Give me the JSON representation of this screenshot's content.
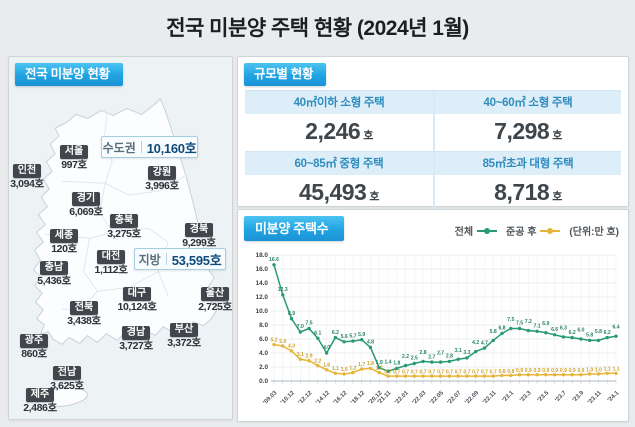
{
  "title": "전국 미분양 주택 현황 (2024년 1월)",
  "map_panel": {
    "header": "전국 미분양 현황",
    "capital_box": {
      "label": "수도권",
      "value": "10,160호"
    },
    "province_box": {
      "label": "지방",
      "value": "53,595호"
    },
    "regions": [
      {
        "name": "서울",
        "value": "997호"
      },
      {
        "name": "인천",
        "value": "3,094호"
      },
      {
        "name": "경기",
        "value": "6,069호"
      },
      {
        "name": "강원",
        "value": "3,996호"
      },
      {
        "name": "충북",
        "value": "3,275호"
      },
      {
        "name": "세종",
        "value": "120호"
      },
      {
        "name": "경북",
        "value": "9,299호"
      },
      {
        "name": "대전",
        "value": "1,112호"
      },
      {
        "name": "충남",
        "value": "5,436호"
      },
      {
        "name": "대구",
        "value": "10,124호"
      },
      {
        "name": "울산",
        "value": "2,725호"
      },
      {
        "name": "전북",
        "value": "3,438호"
      },
      {
        "name": "경남",
        "value": "3,727호"
      },
      {
        "name": "부산",
        "value": "3,372호"
      },
      {
        "name": "광주",
        "value": "860호"
      },
      {
        "name": "전남",
        "value": "3,625호"
      },
      {
        "name": "제주",
        "value": "2,486호"
      }
    ]
  },
  "size_panel": {
    "header": "규모별 현황",
    "cells": [
      {
        "label": "40㎡이하 소형 주택",
        "value": "2,246",
        "unit": "호"
      },
      {
        "label": "40~60㎡ 소형 주택",
        "value": "7,298",
        "unit": "호"
      },
      {
        "label": "60~85㎡ 중형 주택",
        "value": "45,493",
        "unit": "호"
      },
      {
        "label": "85㎡초과 대형 주택",
        "value": "8,718",
        "unit": "호"
      }
    ]
  },
  "chart_panel": {
    "header": "미분양 주택수",
    "unit_note": "(단위:만 호)"
  },
  "chart_data": {
    "type": "line",
    "title": "미분양 주택수",
    "unit": "만 호",
    "ylim": [
      0,
      18
    ],
    "ytick_step": 2,
    "grid": true,
    "legend_position": "top-right",
    "x_labels": [
      "'09.03",
      "'10.12",
      "'12.12",
      "'14.12",
      "'16.12",
      "'18.12",
      "'20.12",
      "'21.11",
      "'22.01",
      "'22.03",
      "'22.05",
      "'22.07",
      "'22.09",
      "'22.11",
      "'23.1",
      "'23.3",
      "'23.5",
      "'23.7",
      "'23.9",
      "'23.11",
      "'24.1"
    ],
    "x_label_indices": [
      0,
      2,
      4,
      6,
      8,
      10,
      12,
      13,
      15,
      17,
      19,
      21,
      23,
      25,
      27,
      29,
      31,
      33,
      35,
      37,
      39
    ],
    "series": [
      {
        "name": "전체",
        "color": "#279b6f",
        "label_color": "#27835d",
        "values": [
          16.6,
          12.3,
          8.9,
          7.0,
          7.5,
          6.1,
          4.0,
          6.2,
          5.6,
          5.7,
          5.9,
          4.8,
          1.9,
          1.4,
          1.8,
          2.2,
          2.5,
          2.8,
          2.7,
          2.7,
          2.8,
          3.1,
          3.3,
          4.2,
          4.7,
          5.8,
          6.8,
          7.5,
          7.5,
          7.2,
          7.1,
          6.9,
          6.6,
          6.3,
          6.2,
          6.0,
          5.8,
          5.8,
          6.2,
          6.4
        ]
      },
      {
        "name": "준공 후",
        "color": "#e6b438",
        "label_color": "#d2a02c",
        "values": [
          5.2,
          5.0,
          4.3,
          3.1,
          2.9,
          2.2,
          1.6,
          1.1,
          1.0,
          1.2,
          1.7,
          1.8,
          1.2,
          0.7,
          0.7,
          0.7,
          0.7,
          0.7,
          0.7,
          0.7,
          0.7,
          0.7,
          0.7,
          0.7,
          0.7,
          0.7,
          0.8,
          0.8,
          0.9,
          0.9,
          0.9,
          0.9,
          0.9,
          0.9,
          0.9,
          0.9,
          1.0,
          1.0,
          1.1,
          1.1
        ]
      }
    ]
  }
}
